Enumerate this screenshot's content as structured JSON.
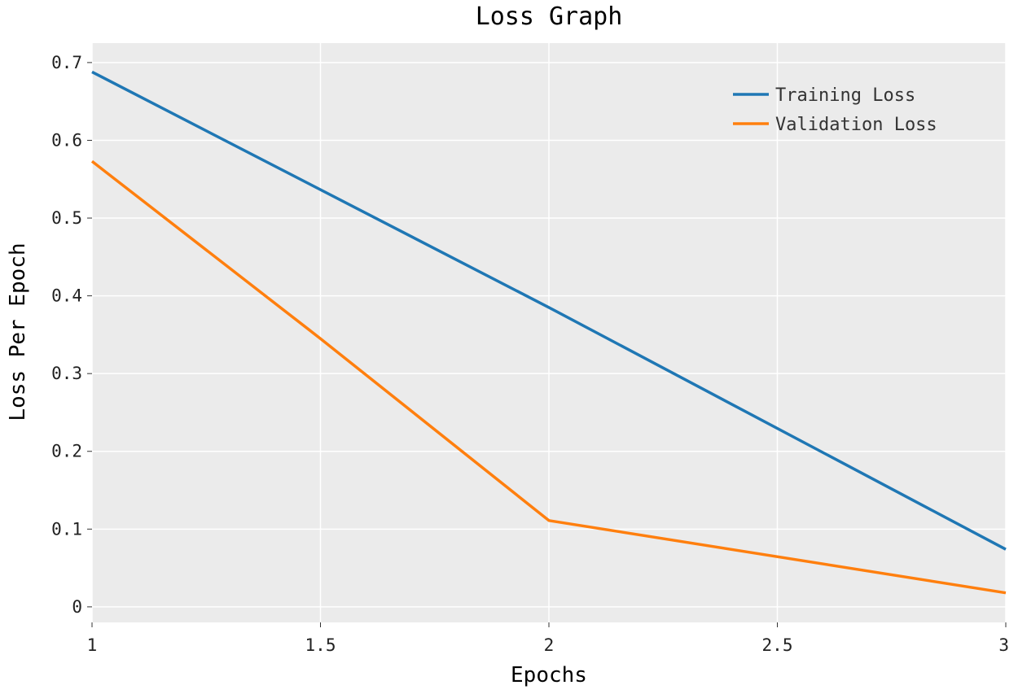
{
  "chart_data": {
    "type": "line",
    "title": "Loss Graph",
    "xlabel": "Epochs",
    "ylabel": "Loss Per Epoch",
    "xlim": [
      1,
      3
    ],
    "ylim": [
      -0.02,
      0.725
    ],
    "xticks": [
      1,
      1.5,
      2,
      2.5,
      3
    ],
    "xtick_labels": [
      "1",
      "1.5",
      "2",
      "2.5",
      "3"
    ],
    "yticks": [
      0,
      0.1,
      0.2,
      0.3,
      0.4,
      0.5,
      0.6,
      0.7
    ],
    "ytick_labels": [
      "0",
      "0.1",
      "0.2",
      "0.3",
      "0.4",
      "0.5",
      "0.6",
      "0.7"
    ],
    "grid": true,
    "legend_position": "top-right",
    "series": [
      {
        "name": "Training Loss",
        "color": "#1f77b4",
        "x": [
          1,
          2,
          3
        ],
        "y": [
          0.688,
          0.385,
          0.074
        ]
      },
      {
        "name": "Validation Loss",
        "color": "#ff7f0e",
        "x": [
          1,
          1.5,
          2,
          3
        ],
        "y": [
          0.573,
          0.345,
          0.111,
          0.018
        ]
      }
    ]
  }
}
